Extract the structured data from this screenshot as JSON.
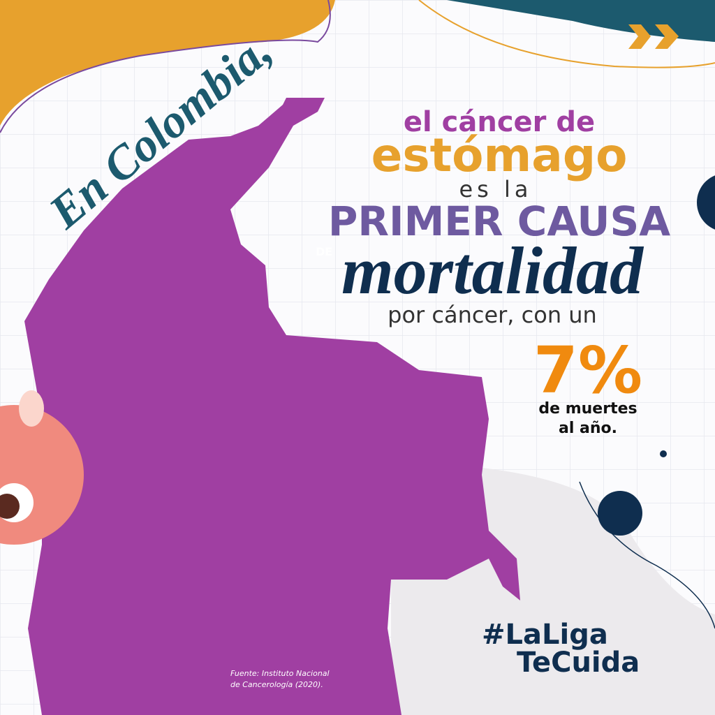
{
  "intro": "En Colombia,",
  "headline": {
    "line1": "el cáncer de",
    "line2": "estómago",
    "line3": "es la",
    "line4": "PRIMER CAUSA",
    "prefix": "DE",
    "line5": "mortalidad",
    "line6": "por cáncer, con un"
  },
  "stat": {
    "figure": "7%",
    "line1": "de muertes",
    "line2": "al año."
  },
  "hashtag": {
    "line1": "#LaLiga",
    "line2": "TeCuida"
  },
  "source": {
    "line1": "Fuente: Instituto Nacional",
    "line2": "de Cancerología (2020)."
  }
}
